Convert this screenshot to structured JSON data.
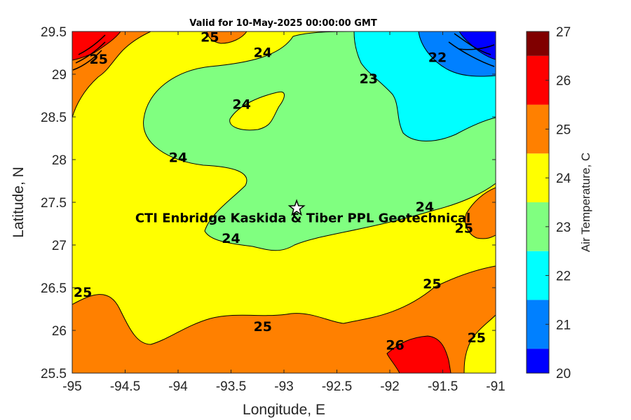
{
  "chart_data": {
    "type": "heatmap",
    "title": "Valid for 10-May-2025 00:00:00 GMT",
    "xlabel": "Longitude, E",
    "ylabel": "Latitude, N",
    "xlim": [
      -95,
      -91
    ],
    "ylim": [
      25.5,
      29.5
    ],
    "xticks": [
      -95,
      -94.5,
      -94,
      -93.5,
      -93,
      -92.5,
      -92,
      -91.5,
      -91
    ],
    "yticks": [
      25.5,
      26,
      26.5,
      27,
      27.5,
      28,
      28.5,
      29,
      29.5
    ],
    "colorbar": {
      "label": "Air Temperature, C",
      "ticks": [
        20,
        21,
        22,
        23,
        24,
        25,
        26,
        27
      ],
      "levels": [
        20,
        20.5,
        21.5,
        22.5,
        23.5,
        24.5,
        25.5,
        26.5,
        27
      ],
      "colors": [
        "#0000ff",
        "#0080ff",
        "#00ffff",
        "#80ff80",
        "#ffff00",
        "#ff8000",
        "#ff0000",
        "#800000"
      ]
    },
    "site": {
      "label": "CTI Enbridge  Kaskida & Tiber PPL Geotechnical",
      "lon": -92.88,
      "lat": 27.43
    },
    "contour_labels": [
      {
        "text": "25",
        "lon": -93.7,
        "lat": 29.44
      },
      {
        "text": "24",
        "lon": -93.2,
        "lat": 29.26
      },
      {
        "text": "25",
        "lon": -94.75,
        "lat": 29.18
      },
      {
        "text": "23",
        "lon": -92.2,
        "lat": 28.95
      },
      {
        "text": "22",
        "lon": -91.55,
        "lat": 29.2
      },
      {
        "text": "24",
        "lon": -93.4,
        "lat": 28.65
      },
      {
        "text": "24",
        "lon": -94.0,
        "lat": 28.03
      },
      {
        "text": "24",
        "lon": -91.67,
        "lat": 27.45
      },
      {
        "text": "25",
        "lon": -91.3,
        "lat": 27.2
      },
      {
        "text": "24",
        "lon": -93.5,
        "lat": 27.08
      },
      {
        "text": "25",
        "lon": -94.9,
        "lat": 26.45
      },
      {
        "text": "25",
        "lon": -91.6,
        "lat": 26.55
      },
      {
        "text": "25",
        "lon": -93.2,
        "lat": 26.05
      },
      {
        "text": "26",
        "lon": -91.95,
        "lat": 25.83
      },
      {
        "text": "25",
        "lon": -91.18,
        "lat": 25.92
      }
    ]
  }
}
